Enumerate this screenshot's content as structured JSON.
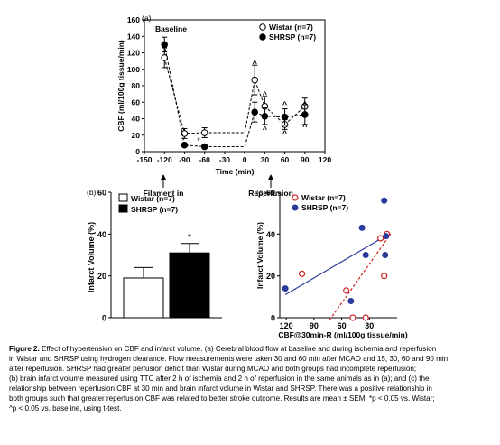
{
  "chart_data": [
    {
      "panel_label": "(a)",
      "type": "line",
      "xlabel": "Time (min)",
      "ylabel": "CBF (ml/100g tissue/min)",
      "xlim": [
        -150,
        120
      ],
      "ylim": [
        0,
        160
      ],
      "xticks": [
        "-150",
        "-120",
        "-90",
        "-60",
        "-30",
        "0",
        "30",
        "60",
        "90",
        "120"
      ],
      "yticks": [
        "0",
        "20",
        "40",
        "60",
        "80",
        "100",
        "120",
        "140",
        "160"
      ],
      "annotations": {
        "baseline": "Baseline",
        "filament": "Filament in",
        "reperfusion": "Reperfusion",
        "star": "*",
        "caret": "^"
      },
      "legend_placement": "top-right",
      "series": [
        {
          "name": "Wistar (n=7)",
          "marker": "open-circle",
          "x": [
            -120,
            -90,
            -60,
            15,
            30,
            60,
            90
          ],
          "y": [
            114,
            22,
            23,
            87,
            55,
            33,
            55
          ],
          "err": [
            12,
            6,
            6,
            18,
            12,
            6,
            10
          ]
        },
        {
          "name": "SHRSP (n=7)",
          "marker": "filled-circle",
          "x": [
            -120,
            -90,
            -60,
            15,
            30,
            60,
            90
          ],
          "y": [
            130,
            8,
            6,
            48,
            43,
            42,
            45
          ],
          "err": [
            9,
            2,
            2,
            12,
            10,
            10,
            12
          ]
        }
      ],
      "caret_markers": [
        {
          "x": 15,
          "y": 108
        },
        {
          "x": 30,
          "y": 70
        },
        {
          "x": 30,
          "y": 28
        },
        {
          "x": 60,
          "y": 58
        },
        {
          "x": 60,
          "y": 23
        },
        {
          "x": 90,
          "y": 58
        },
        {
          "x": 90,
          "y": 31
        }
      ],
      "star_marker": {
        "x": -69,
        "y": 14
      }
    },
    {
      "panel_label": "(b)",
      "type": "bar",
      "ylabel": "Infarct Volume (%)",
      "ylim": [
        0,
        60
      ],
      "yticks": [
        "0",
        "20",
        "40",
        "60"
      ],
      "legend_placement": "top-left",
      "series": [
        {
          "name": "Wistar (n=7)",
          "value": 19,
          "err": 5,
          "fill": "#ffffff"
        },
        {
          "name": "SHRSP (n=7)",
          "value": 31,
          "err": 4.5,
          "fill": "#000000"
        }
      ],
      "significance": "*"
    },
    {
      "panel_label": "(c)",
      "type": "scatter",
      "xlabel": "CBF@30min-R (ml/100g tissue/min)",
      "ylabel": "Infarct Volume (%)",
      "xlim": [
        127,
        0
      ],
      "ylim": [
        0,
        60
      ],
      "xticks": [
        "120",
        "90",
        "60",
        "30"
      ],
      "yticks": [
        "0",
        "20",
        "40",
        "60"
      ],
      "legend_placement": "top-left",
      "series": [
        {
          "name": "Wistar (n=7)",
          "color": "#cc2222",
          "marker": "open-circle",
          "x": [
            103,
            55,
            48,
            34,
            18,
            14,
            11
          ],
          "y": [
            21,
            13,
            0,
            0,
            38,
            20,
            40
          ],
          "fit": [
            [
              73,
              -1
            ],
            [
              7,
              40
            ]
          ]
        },
        {
          "name": "SHRSP (n=7)",
          "color": "#2a3a9a",
          "marker": "filled-circle",
          "x": [
            121,
            50,
            38,
            34,
            14,
            13,
            12
          ],
          "y": [
            14,
            8,
            43,
            30,
            56,
            30,
            39
          ],
          "fit": [
            [
              121,
              11
            ],
            [
              9,
              40
            ]
          ]
        }
      ]
    }
  ],
  "caption": {
    "label": "Figure 2.",
    "lines": [
      " Effect of hypertension on CBF and infarct volume. (a) Cerebral blood flow at baseline and during ischemia and reperfusion",
      "in Wistar and SHRSP using hydrogen clearance. Flow measurements were taken 30 and 60 min after MCAO and 15, 30, 60 and 90 min",
      "after reperfusion. SHRSP had greater perfusion deficit than Wistar during MCAO and both groups had incomplete reperfusion;",
      "(b) brain infarct volume measured using TTC after 2 h of ischemia and 2 h of reperfusion in the same animals as in (a); and (c) the",
      "relationship between reperfusion CBF at 30 min and brain infarct volume in Wistar and SHRSP. There was a positive relationship in",
      "both groups such that greater reperfusion CBF was related to better stroke outcome. Results are mean ± SEM. *p < 0.05 vs. Wistar;",
      "^p < 0.05 vs. baseline, using t-test."
    ]
  }
}
